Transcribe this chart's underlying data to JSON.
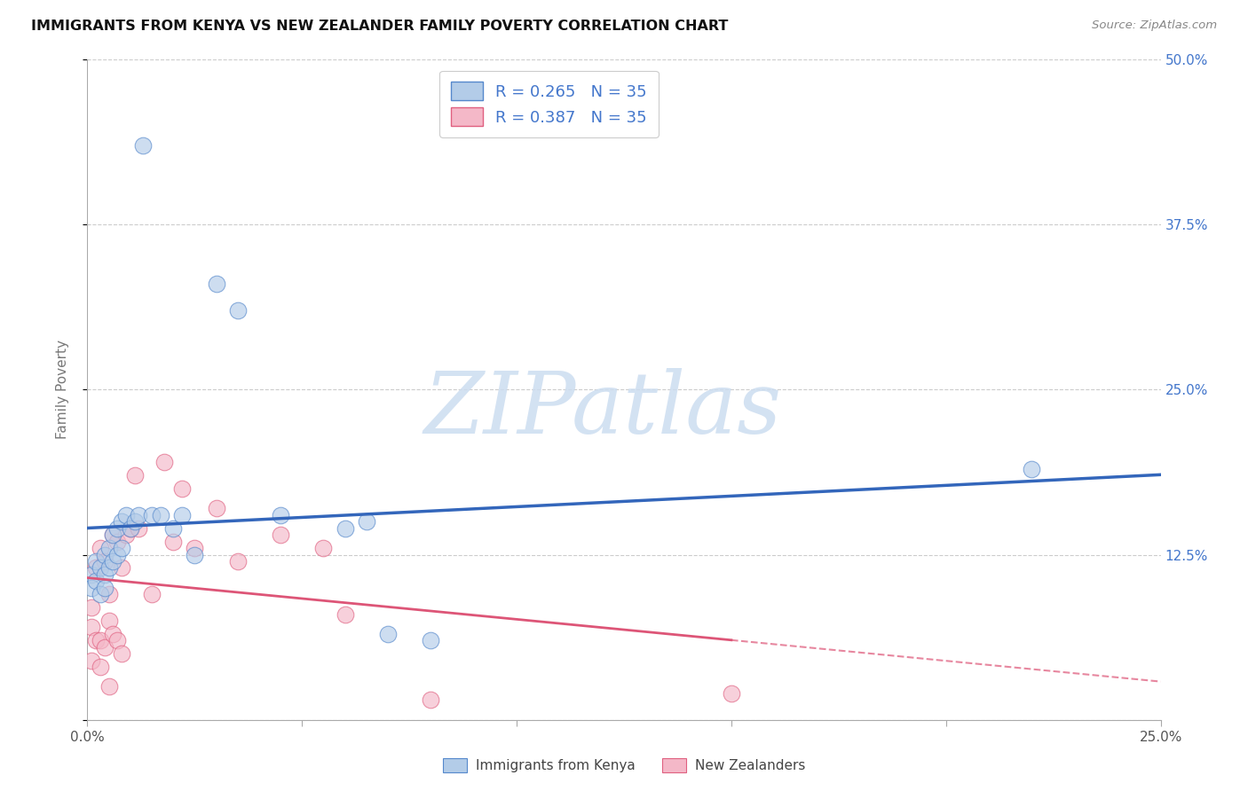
{
  "title": "IMMIGRANTS FROM KENYA VS NEW ZEALANDER FAMILY POVERTY CORRELATION CHART",
  "source": "Source: ZipAtlas.com",
  "ylabel": "Family Poverty",
  "xlim": [
    0.0,
    0.25
  ],
  "ylim": [
    0.0,
    0.5
  ],
  "xticks": [
    0.0,
    0.05,
    0.1,
    0.15,
    0.2,
    0.25
  ],
  "yticks": [
    0.0,
    0.125,
    0.25,
    0.375,
    0.5
  ],
  "xtick_labels": [
    "0.0%",
    "",
    "",
    "",
    "",
    "25.0%"
  ],
  "ytick_labels_right": [
    "",
    "12.5%",
    "25.0%",
    "37.5%",
    "50.0%"
  ],
  "r_kenya": "0.265",
  "r_nz": "0.387",
  "n_kenya": "35",
  "n_nz": "35",
  "color_kenya_fill": "#b3cce8",
  "color_kenya_edge": "#5588cc",
  "color_nz_fill": "#f4b8c8",
  "color_nz_edge": "#e06080",
  "color_kenya_line": "#3366bb",
  "color_nz_line": "#dd5577",
  "watermark_text": "ZIPatlas",
  "watermark_color": "#ddeeff",
  "legend_label_1": "Immigrants from Kenya",
  "legend_label_2": "New Zealanders",
  "kenya_x": [
    0.001,
    0.001,
    0.002,
    0.002,
    0.003,
    0.003,
    0.004,
    0.004,
    0.004,
    0.005,
    0.005,
    0.006,
    0.006,
    0.007,
    0.007,
    0.008,
    0.008,
    0.009,
    0.01,
    0.011,
    0.012,
    0.013,
    0.015,
    0.017,
    0.02,
    0.022,
    0.025,
    0.03,
    0.035,
    0.045,
    0.06,
    0.065,
    0.07,
    0.08,
    0.22
  ],
  "kenya_y": [
    0.11,
    0.1,
    0.12,
    0.105,
    0.115,
    0.095,
    0.125,
    0.11,
    0.1,
    0.13,
    0.115,
    0.14,
    0.12,
    0.145,
    0.125,
    0.15,
    0.13,
    0.155,
    0.145,
    0.15,
    0.155,
    0.435,
    0.155,
    0.155,
    0.145,
    0.155,
    0.125,
    0.33,
    0.31,
    0.155,
    0.145,
    0.15,
    0.065,
    0.06,
    0.19
  ],
  "nz_x": [
    0.001,
    0.001,
    0.001,
    0.002,
    0.002,
    0.003,
    0.003,
    0.003,
    0.004,
    0.004,
    0.005,
    0.005,
    0.005,
    0.006,
    0.006,
    0.007,
    0.007,
    0.008,
    0.008,
    0.009,
    0.01,
    0.011,
    0.012,
    0.015,
    0.018,
    0.02,
    0.022,
    0.025,
    0.03,
    0.035,
    0.045,
    0.055,
    0.06,
    0.08,
    0.15
  ],
  "nz_y": [
    0.085,
    0.07,
    0.045,
    0.115,
    0.06,
    0.13,
    0.06,
    0.04,
    0.12,
    0.055,
    0.095,
    0.075,
    0.025,
    0.14,
    0.065,
    0.135,
    0.06,
    0.115,
    0.05,
    0.14,
    0.145,
    0.185,
    0.145,
    0.095,
    0.195,
    0.135,
    0.175,
    0.13,
    0.16,
    0.12,
    0.14,
    0.13,
    0.08,
    0.015,
    0.02
  ]
}
